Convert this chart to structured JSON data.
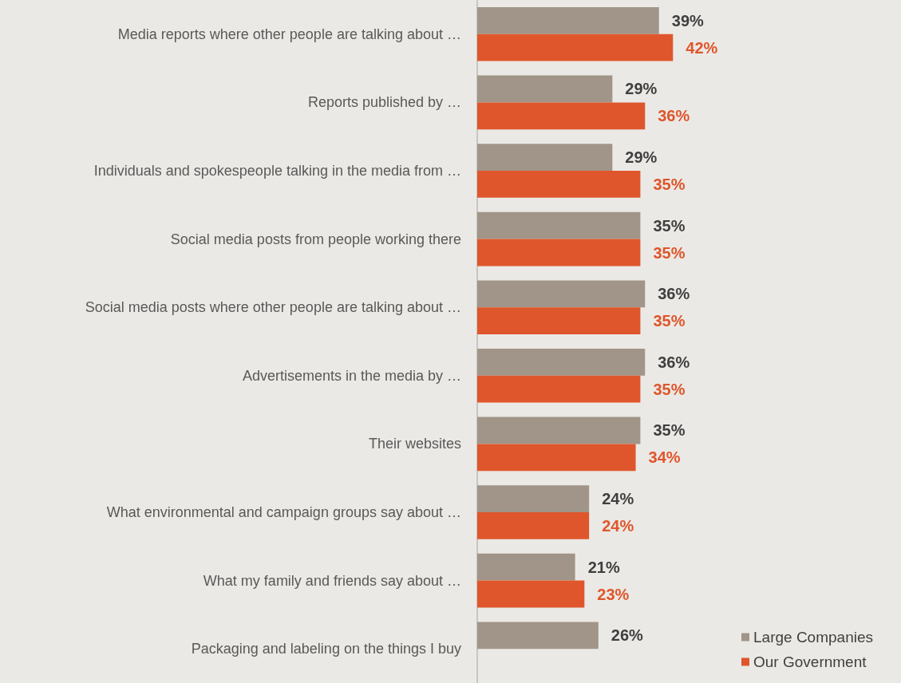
{
  "chart_data": {
    "type": "bar",
    "orientation": "horizontal",
    "legend": "bottom right",
    "categories": [
      "Media reports where other people are talking about …",
      "Reports published by …",
      "Individuals and spokespeople talking in the media from …",
      "Social media posts from people working there",
      "Social media posts where other people are talking about …",
      "Advertisements in the media by …",
      "Their websites",
      "What environmental and campaign groups say about …",
      "What my family and friends say about …",
      "Packaging and labeling on the things I buy"
    ],
    "series": [
      {
        "name": "Large Companies",
        "color": "#a09588",
        "values": [
          39,
          29,
          29,
          35,
          36,
          36,
          35,
          24,
          21,
          26
        ],
        "value_labels": [
          "39%",
          "29%",
          "29%",
          "35%",
          "36%",
          "36%",
          "35%",
          "24%",
          "21%",
          "26%"
        ]
      },
      {
        "name": "Our Government",
        "color": "#df562c",
        "values": [
          42,
          36,
          35,
          35,
          35,
          35,
          34,
          24,
          23,
          null
        ],
        "value_labels": [
          "42%",
          "36%",
          "35%",
          "35%",
          "35%",
          "35%",
          "34%",
          "24%",
          "23%",
          null
        ]
      }
    ]
  }
}
